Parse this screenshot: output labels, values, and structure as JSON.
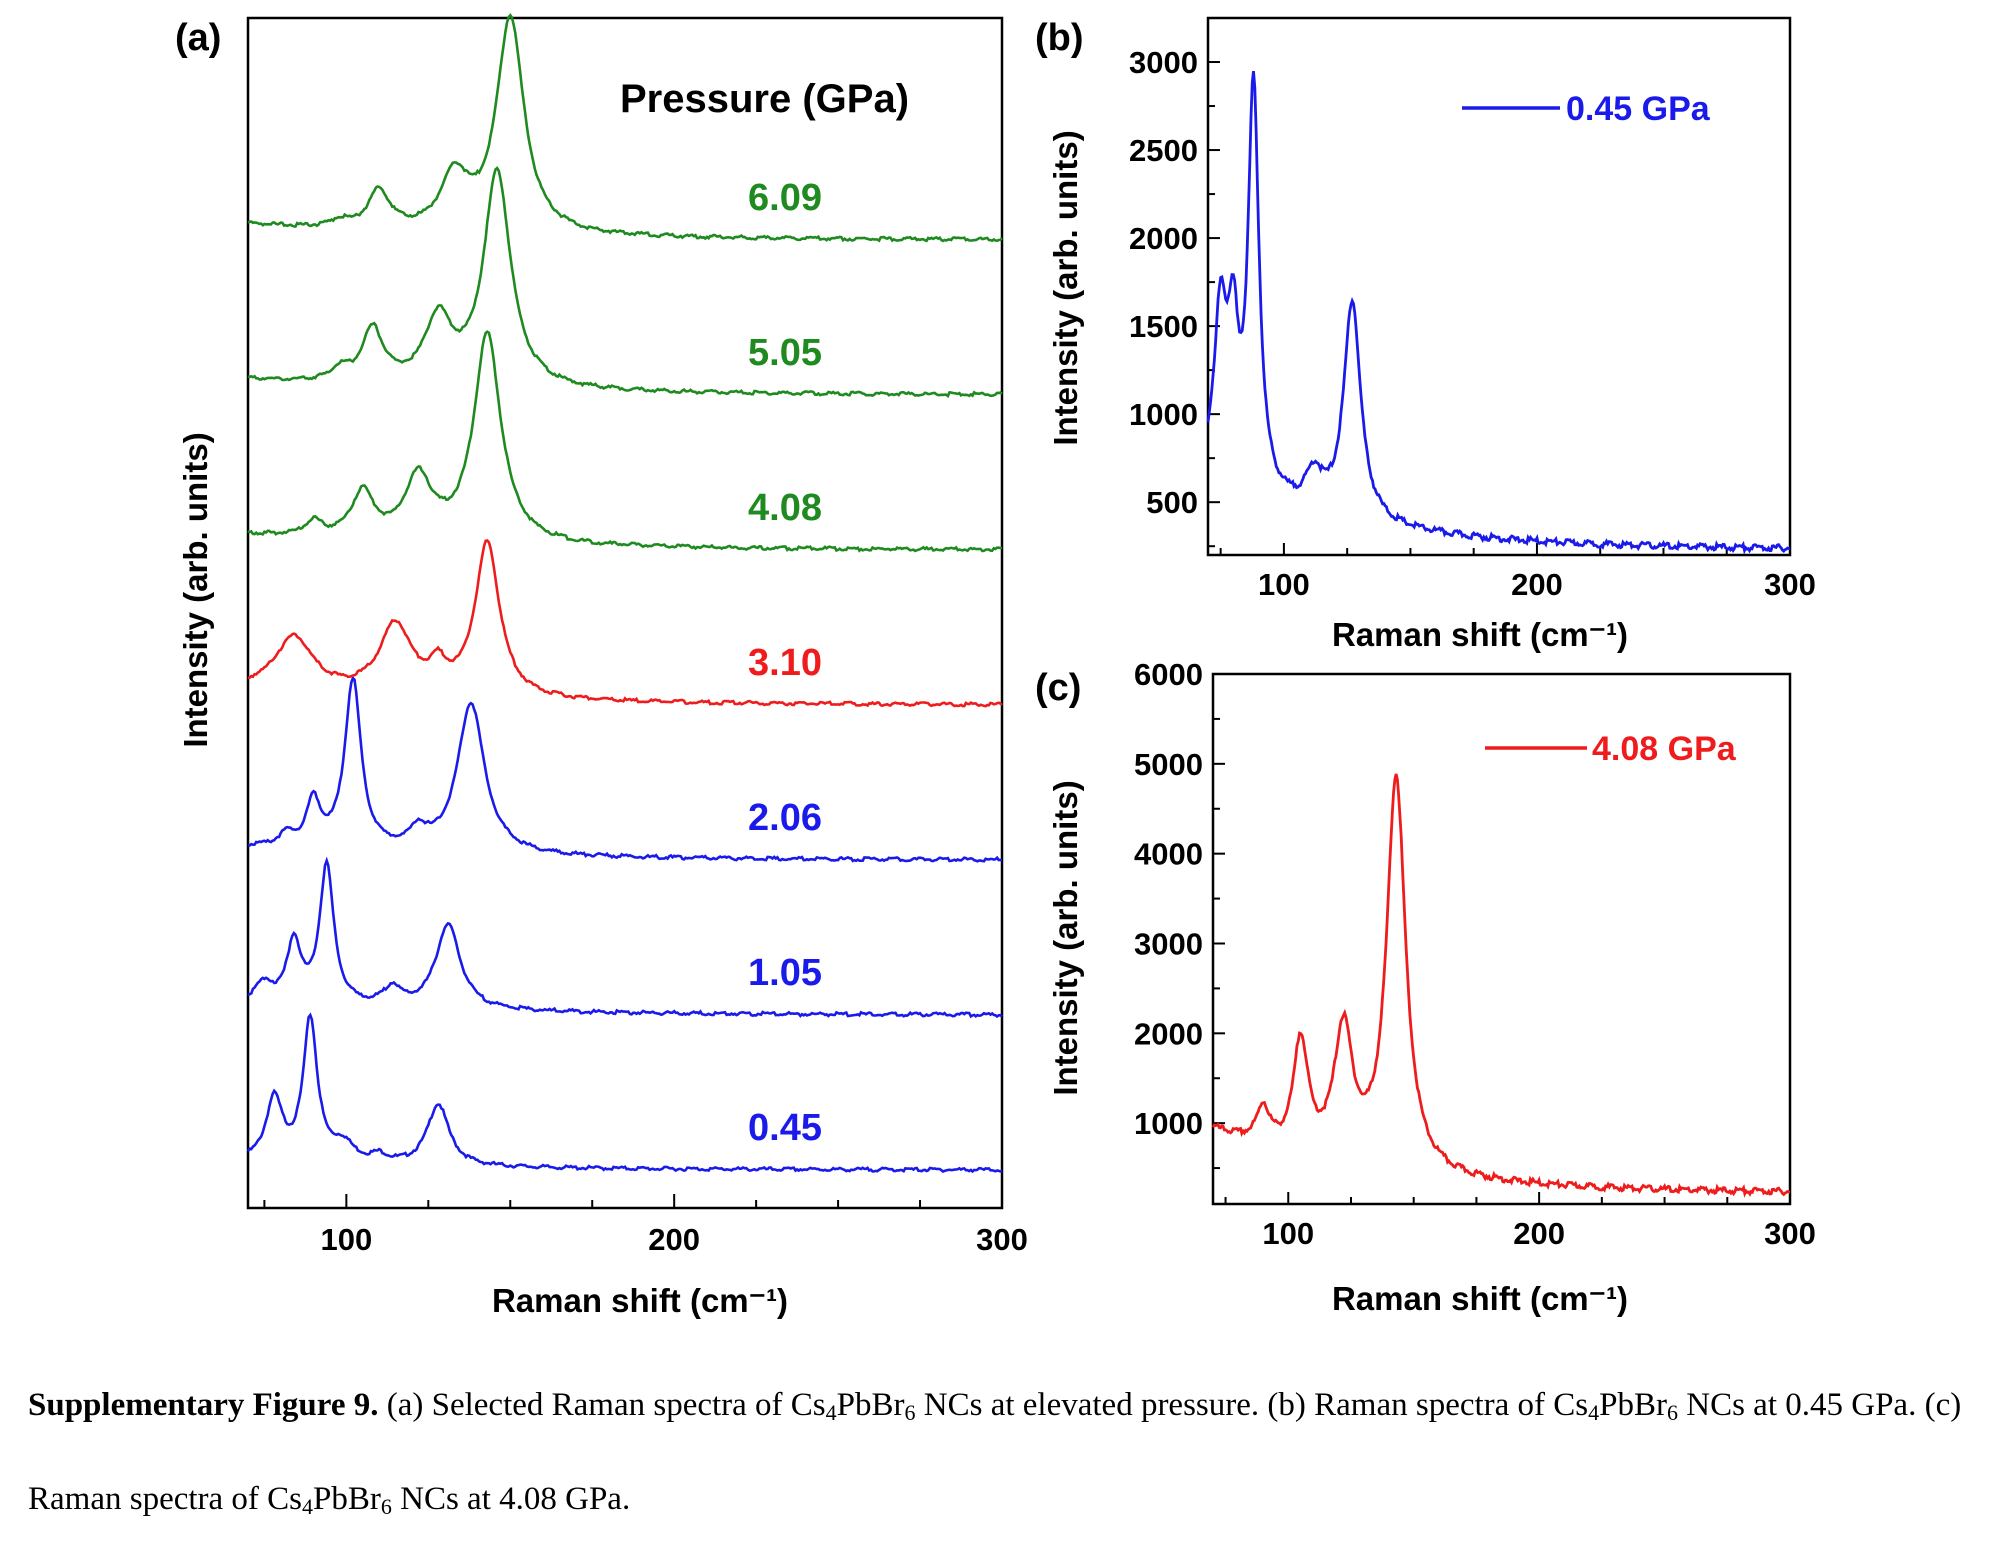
{
  "figure": {
    "panel_labels": {
      "a": "(a)",
      "b": "(b)",
      "c": "(c)"
    },
    "caption_label": "Supplementary Figure 9.",
    "caption_part1": "(a) Selected Raman spectra of Cs",
    "caption_part2": "PbBr",
    "caption_part3": " NCs at elevated pressure. (b) Raman spectra of Cs",
    "caption_part4": "PbBr",
    "caption_part5": " NCs at 0.45 GPa. (c) Raman spectra of Cs",
    "caption_part6": "PbBr",
    "caption_part7": " NCs at 4.08 GPa.",
    "sub4": "4",
    "sub6": "6"
  },
  "chart_data": [
    {
      "panel": "(a)",
      "type": "line",
      "xlabel": "Raman shift (cm⁻¹)",
      "ylabel": "Intensity (arb. units)",
      "legend_title": "Pressure (GPa)",
      "xlim": [
        70,
        300
      ],
      "xticks": [
        100,
        200,
        300
      ],
      "stacked": true,
      "colors": {
        "blue": "#1a1aeb",
        "red": "#ee1c1c",
        "green": "#1f8a1f"
      },
      "series": [
        {
          "name": "0.45",
          "color": "#1a1aeb",
          "baseline": 0,
          "tail": 0.05,
          "peaks": [
            [
              78,
              0.4,
              3
            ],
            [
              89,
              0.92,
              2.6
            ],
            [
              99,
              0.12,
              4
            ],
            [
              110,
              0.05,
              3
            ],
            [
              128,
              0.4,
              4
            ]
          ]
        },
        {
          "name": "1.05",
          "color": "#1a1aeb",
          "baseline": 1.0,
          "tail": 0.08,
          "peaks": [
            [
              75,
              0.12,
              3
            ],
            [
              84,
              0.4,
              2.5
            ],
            [
              94,
              0.9,
              2.6
            ],
            [
              114,
              0.12,
              3
            ],
            [
              131,
              0.55,
              4.5
            ]
          ]
        },
        {
          "name": "2.06",
          "color": "#1a1aeb",
          "baseline": 2.0,
          "tail": 0.08,
          "peaks": [
            [
              82,
              0.08,
              3
            ],
            [
              90,
              0.3,
              2.5
            ],
            [
              102,
              1.1,
              3
            ],
            [
              122,
              0.12,
              3
            ],
            [
              138,
              0.98,
              5
            ]
          ]
        },
        {
          "name": "3.10",
          "color": "#ee1c1c",
          "baseline": 3.0,
          "tail": 0.1,
          "peaks": [
            [
              84,
              0.35,
              7
            ],
            [
              115,
              0.45,
              6
            ],
            [
              128,
              0.15,
              3
            ],
            [
              143,
              1.0,
              4.5
            ]
          ]
        },
        {
          "name": "4.08",
          "color": "#1f8a1f",
          "baseline": 4.0,
          "tail": 0.1,
          "peaks": [
            [
              90,
              0.1,
              3
            ],
            [
              105,
              0.3,
              4
            ],
            [
              122,
              0.4,
              5
            ],
            [
              143,
              1.35,
              5
            ]
          ]
        },
        {
          "name": "5.05",
          "color": "#1f8a1f",
          "baseline": 5.0,
          "tail": 0.1,
          "peaks": [
            [
              98,
              0.08,
              3
            ],
            [
              108,
              0.35,
              4
            ],
            [
              128,
              0.42,
              5
            ],
            [
              146,
              1.4,
              5
            ]
          ]
        },
        {
          "name": "6.09",
          "color": "#1f8a1f",
          "baseline": 6.0,
          "tail": 0.1,
          "peaks": [
            [
              98,
              0.05,
              3
            ],
            [
              110,
              0.25,
              4
            ],
            [
              133,
              0.35,
              5
            ],
            [
              150,
              1.4,
              5
            ]
          ]
        }
      ]
    },
    {
      "panel": "(b)",
      "type": "line",
      "xlabel": "Raman shift (cm⁻¹)",
      "ylabel": "Intensity (arb. units)",
      "xlim": [
        70,
        300
      ],
      "ylim": [
        200,
        3250
      ],
      "xticks": [
        100,
        200,
        300
      ],
      "yticks": [
        500,
        1000,
        1500,
        2000,
        2500,
        3000
      ],
      "legend": "0.45 GPa",
      "color": "#1a1aeb",
      "baseline": 230,
      "tail": 380,
      "peaks": [
        [
          75,
          950,
          3
        ],
        [
          80,
          750,
          2.5
        ],
        [
          88,
          2300,
          2.6
        ],
        [
          112,
          200,
          4
        ],
        [
          127,
          1250,
          4
        ]
      ]
    },
    {
      "panel": "(c)",
      "type": "line",
      "xlabel": "Raman shift (cm⁻¹)",
      "ylabel": "Intensity (arb. units)",
      "xlim": [
        70,
        300
      ],
      "ylim": [
        100,
        6000
      ],
      "xticks": [
        100,
        200,
        300
      ],
      "yticks": [
        1000,
        2000,
        3000,
        4000,
        5000,
        6000
      ],
      "legend": "4.08 GPa",
      "color": "#ee1c1c",
      "baseline": 220,
      "tail": 700,
      "peaks": [
        [
          90,
          400,
          3
        ],
        [
          105,
          1250,
          3.5
        ],
        [
          122,
          1450,
          4.5
        ],
        [
          143,
          4400,
          4.5
        ]
      ]
    }
  ]
}
